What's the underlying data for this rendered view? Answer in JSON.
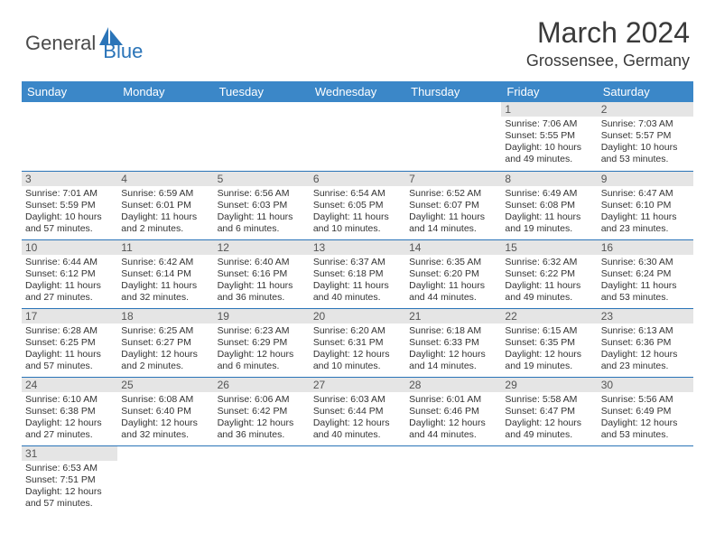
{
  "logo": {
    "general": "General",
    "blue": "Blue"
  },
  "title": "March 2024",
  "location": "Grossensee, Germany",
  "colors": {
    "header_bg": "#3b87c8",
    "header_text": "#ffffff",
    "daynum_bg": "#e5e5e5",
    "cell_border": "#2a74b8",
    "logo_blue": "#2a74b8",
    "text": "#333333"
  },
  "days_of_week": [
    "Sunday",
    "Monday",
    "Tuesday",
    "Wednesday",
    "Thursday",
    "Friday",
    "Saturday"
  ],
  "weeks": [
    [
      null,
      null,
      null,
      null,
      null,
      {
        "n": "1",
        "sr": "Sunrise: 7:06 AM",
        "ss": "Sunset: 5:55 PM",
        "dl1": "Daylight: 10 hours",
        "dl2": "and 49 minutes."
      },
      {
        "n": "2",
        "sr": "Sunrise: 7:03 AM",
        "ss": "Sunset: 5:57 PM",
        "dl1": "Daylight: 10 hours",
        "dl2": "and 53 minutes."
      }
    ],
    [
      {
        "n": "3",
        "sr": "Sunrise: 7:01 AM",
        "ss": "Sunset: 5:59 PM",
        "dl1": "Daylight: 10 hours",
        "dl2": "and 57 minutes."
      },
      {
        "n": "4",
        "sr": "Sunrise: 6:59 AM",
        "ss": "Sunset: 6:01 PM",
        "dl1": "Daylight: 11 hours",
        "dl2": "and 2 minutes."
      },
      {
        "n": "5",
        "sr": "Sunrise: 6:56 AM",
        "ss": "Sunset: 6:03 PM",
        "dl1": "Daylight: 11 hours",
        "dl2": "and 6 minutes."
      },
      {
        "n": "6",
        "sr": "Sunrise: 6:54 AM",
        "ss": "Sunset: 6:05 PM",
        "dl1": "Daylight: 11 hours",
        "dl2": "and 10 minutes."
      },
      {
        "n": "7",
        "sr": "Sunrise: 6:52 AM",
        "ss": "Sunset: 6:07 PM",
        "dl1": "Daylight: 11 hours",
        "dl2": "and 14 minutes."
      },
      {
        "n": "8",
        "sr": "Sunrise: 6:49 AM",
        "ss": "Sunset: 6:08 PM",
        "dl1": "Daylight: 11 hours",
        "dl2": "and 19 minutes."
      },
      {
        "n": "9",
        "sr": "Sunrise: 6:47 AM",
        "ss": "Sunset: 6:10 PM",
        "dl1": "Daylight: 11 hours",
        "dl2": "and 23 minutes."
      }
    ],
    [
      {
        "n": "10",
        "sr": "Sunrise: 6:44 AM",
        "ss": "Sunset: 6:12 PM",
        "dl1": "Daylight: 11 hours",
        "dl2": "and 27 minutes."
      },
      {
        "n": "11",
        "sr": "Sunrise: 6:42 AM",
        "ss": "Sunset: 6:14 PM",
        "dl1": "Daylight: 11 hours",
        "dl2": "and 32 minutes."
      },
      {
        "n": "12",
        "sr": "Sunrise: 6:40 AM",
        "ss": "Sunset: 6:16 PM",
        "dl1": "Daylight: 11 hours",
        "dl2": "and 36 minutes."
      },
      {
        "n": "13",
        "sr": "Sunrise: 6:37 AM",
        "ss": "Sunset: 6:18 PM",
        "dl1": "Daylight: 11 hours",
        "dl2": "and 40 minutes."
      },
      {
        "n": "14",
        "sr": "Sunrise: 6:35 AM",
        "ss": "Sunset: 6:20 PM",
        "dl1": "Daylight: 11 hours",
        "dl2": "and 44 minutes."
      },
      {
        "n": "15",
        "sr": "Sunrise: 6:32 AM",
        "ss": "Sunset: 6:22 PM",
        "dl1": "Daylight: 11 hours",
        "dl2": "and 49 minutes."
      },
      {
        "n": "16",
        "sr": "Sunrise: 6:30 AM",
        "ss": "Sunset: 6:24 PM",
        "dl1": "Daylight: 11 hours",
        "dl2": "and 53 minutes."
      }
    ],
    [
      {
        "n": "17",
        "sr": "Sunrise: 6:28 AM",
        "ss": "Sunset: 6:25 PM",
        "dl1": "Daylight: 11 hours",
        "dl2": "and 57 minutes."
      },
      {
        "n": "18",
        "sr": "Sunrise: 6:25 AM",
        "ss": "Sunset: 6:27 PM",
        "dl1": "Daylight: 12 hours",
        "dl2": "and 2 minutes."
      },
      {
        "n": "19",
        "sr": "Sunrise: 6:23 AM",
        "ss": "Sunset: 6:29 PM",
        "dl1": "Daylight: 12 hours",
        "dl2": "and 6 minutes."
      },
      {
        "n": "20",
        "sr": "Sunrise: 6:20 AM",
        "ss": "Sunset: 6:31 PM",
        "dl1": "Daylight: 12 hours",
        "dl2": "and 10 minutes."
      },
      {
        "n": "21",
        "sr": "Sunrise: 6:18 AM",
        "ss": "Sunset: 6:33 PM",
        "dl1": "Daylight: 12 hours",
        "dl2": "and 14 minutes."
      },
      {
        "n": "22",
        "sr": "Sunrise: 6:15 AM",
        "ss": "Sunset: 6:35 PM",
        "dl1": "Daylight: 12 hours",
        "dl2": "and 19 minutes."
      },
      {
        "n": "23",
        "sr": "Sunrise: 6:13 AM",
        "ss": "Sunset: 6:36 PM",
        "dl1": "Daylight: 12 hours",
        "dl2": "and 23 minutes."
      }
    ],
    [
      {
        "n": "24",
        "sr": "Sunrise: 6:10 AM",
        "ss": "Sunset: 6:38 PM",
        "dl1": "Daylight: 12 hours",
        "dl2": "and 27 minutes."
      },
      {
        "n": "25",
        "sr": "Sunrise: 6:08 AM",
        "ss": "Sunset: 6:40 PM",
        "dl1": "Daylight: 12 hours",
        "dl2": "and 32 minutes."
      },
      {
        "n": "26",
        "sr": "Sunrise: 6:06 AM",
        "ss": "Sunset: 6:42 PM",
        "dl1": "Daylight: 12 hours",
        "dl2": "and 36 minutes."
      },
      {
        "n": "27",
        "sr": "Sunrise: 6:03 AM",
        "ss": "Sunset: 6:44 PM",
        "dl1": "Daylight: 12 hours",
        "dl2": "and 40 minutes."
      },
      {
        "n": "28",
        "sr": "Sunrise: 6:01 AM",
        "ss": "Sunset: 6:46 PM",
        "dl1": "Daylight: 12 hours",
        "dl2": "and 44 minutes."
      },
      {
        "n": "29",
        "sr": "Sunrise: 5:58 AM",
        "ss": "Sunset: 6:47 PM",
        "dl1": "Daylight: 12 hours",
        "dl2": "and 49 minutes."
      },
      {
        "n": "30",
        "sr": "Sunrise: 5:56 AM",
        "ss": "Sunset: 6:49 PM",
        "dl1": "Daylight: 12 hours",
        "dl2": "and 53 minutes."
      }
    ],
    [
      {
        "n": "31",
        "sr": "Sunrise: 6:53 AM",
        "ss": "Sunset: 7:51 PM",
        "dl1": "Daylight: 12 hours",
        "dl2": "and 57 minutes."
      },
      null,
      null,
      null,
      null,
      null,
      null
    ]
  ]
}
